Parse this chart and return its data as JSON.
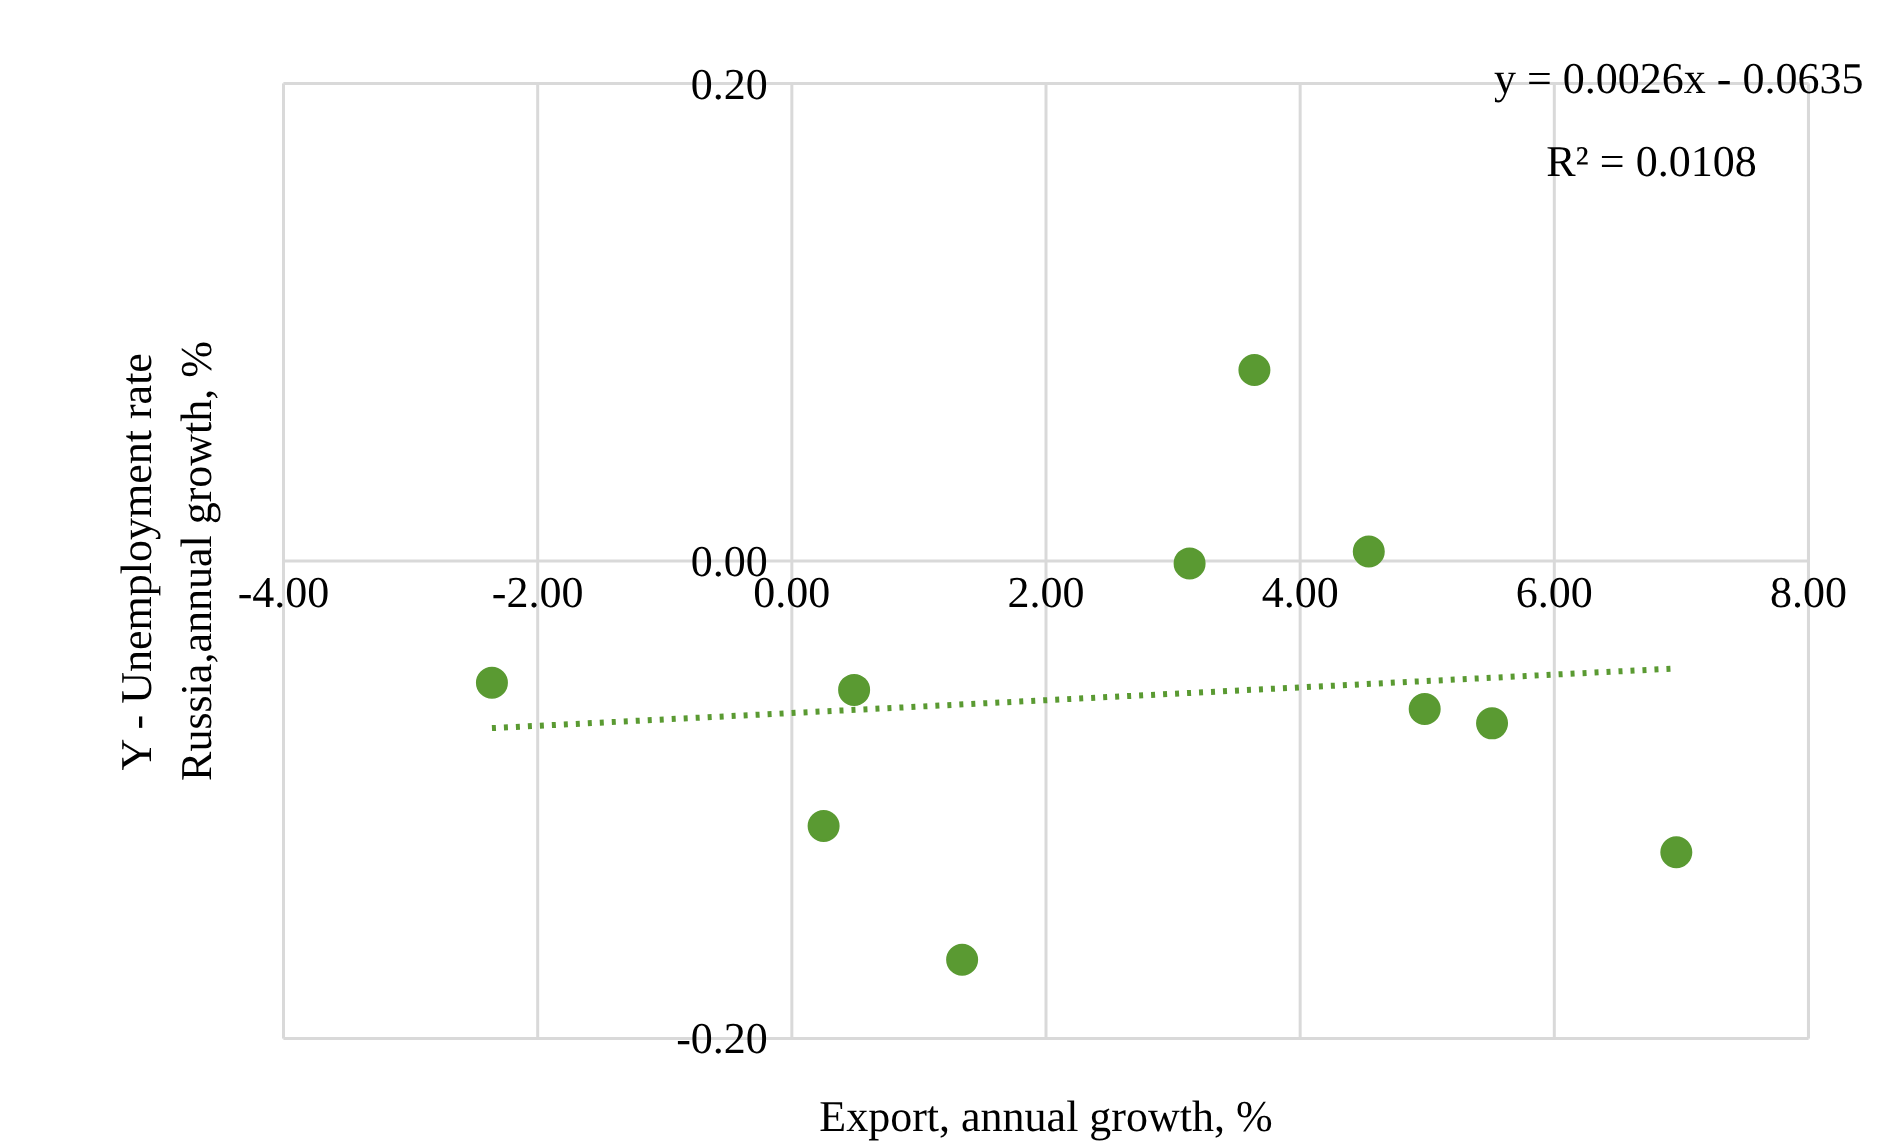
{
  "chart_data": {
    "type": "scatter",
    "xlabel": "Export, annual growth, %",
    "ylabel": "Y - Unemployment rate\nRussia,annual growth, %",
    "x": [
      -2.36,
      0.49,
      0.25,
      1.34,
      3.13,
      3.64,
      4.54,
      4.98,
      5.51,
      6.96
    ],
    "series": [
      {
        "color": "#5a9a32",
        "marker": "circle",
        "values": [
          -0.051,
          -0.054,
          -0.111,
          -0.167,
          -0.001,
          0.08,
          0.004,
          -0.062,
          -0.068,
          -0.122
        ]
      },
      {
        "type": "line",
        "color": "#5a9a32",
        "line_style": "dotted",
        "x": [
          -2.36,
          6.96
        ],
        "values": [
          -0.07,
          -0.045
        ]
      }
    ],
    "xlim": [
      -4,
      8
    ],
    "ylim": [
      -0.2,
      0.2
    ],
    "xticks": [
      {
        "value": -4,
        "label": "-4.00"
      },
      {
        "value": -2,
        "label": "-2.00"
      },
      {
        "value": 0,
        "label": "0.00"
      },
      {
        "value": 2,
        "label": "2.00"
      },
      {
        "value": 4,
        "label": "4.00"
      },
      {
        "value": 6,
        "label": "6.00"
      },
      {
        "value": 8,
        "label": "8.00"
      }
    ],
    "yticks": [
      {
        "value": -0.2,
        "label": "-0.20"
      },
      {
        "value": 0,
        "label": "0.00"
      },
      {
        "value": 0.2,
        "label": "0.20"
      }
    ],
    "grid": true,
    "annotations": [
      "y = 0.0026x - 0.0635",
      "R² = 0.0108"
    ]
  }
}
